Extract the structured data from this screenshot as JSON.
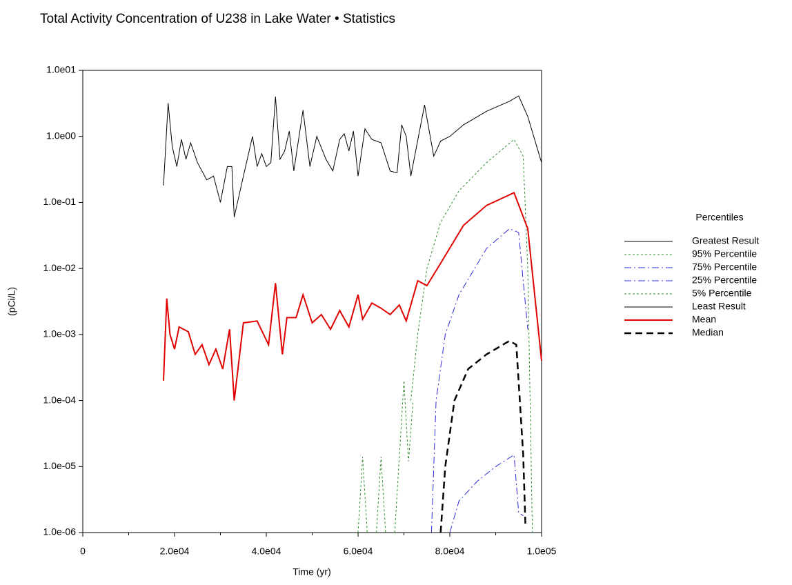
{
  "chart_data": {
    "type": "line",
    "title": "Total Activity Concentration of U238 in Lake Water • Statistics",
    "xlabel": "Time (yr)",
    "ylabel": "(pCi/L)",
    "legend_title": "Percentiles",
    "legend_position": "right",
    "yscale": "log",
    "xlim": [
      0,
      100000
    ],
    "ylim": [
      1e-06,
      10
    ],
    "xticks": [
      0,
      {
        "value": 20000,
        "label": "2.0e04"
      },
      {
        "value": 40000,
        "label": "4.0e04"
      },
      {
        "value": 60000,
        "label": "6.0e04"
      },
      {
        "value": 80000,
        "label": "8.0e04"
      },
      {
        "value": 100000,
        "label": "1.0e05"
      }
    ],
    "yticks": [
      {
        "value": 1e-06,
        "label": "1.0e-06"
      },
      {
        "value": 1e-05,
        "label": "1.0e-05"
      },
      {
        "value": 0.0001,
        "label": "1.0e-04"
      },
      {
        "value": 0.001,
        "label": "1.0e-03"
      },
      {
        "value": 0.01,
        "label": "1.0e-02"
      },
      {
        "value": 0.1,
        "label": "1.0e-01"
      },
      {
        "value": 1,
        "label": "1.0e00"
      },
      {
        "value": 10,
        "label": "1.0e01"
      }
    ],
    "series": [
      {
        "name": "Greatest Result",
        "color": "#000000",
        "dash": "solid",
        "width": 1,
        "x": [
          17600,
          18600,
          19500,
          20500,
          21500,
          22500,
          23500,
          25000,
          27000,
          28500,
          30000,
          31500,
          32500,
          33000,
          35000,
          37000,
          38000,
          39000,
          40000,
          41000,
          42000,
          43000,
          44000,
          45000,
          46000,
          48000,
          49500,
          51000,
          53000,
          54500,
          56000,
          57000,
          58000,
          59000,
          60000,
          61500,
          63000,
          65000,
          67000,
          68500,
          69500,
          70500,
          71500,
          74500,
          76500,
          78000,
          80000,
          83000,
          88000,
          93000,
          95000,
          97000,
          100000
        ],
        "values": [
          0.18,
          3.2,
          0.7,
          0.35,
          0.9,
          0.45,
          0.8,
          0.4,
          0.22,
          0.25,
          0.1,
          0.35,
          0.35,
          0.06,
          0.25,
          1.0,
          0.35,
          0.55,
          0.35,
          0.4,
          4.0,
          0.45,
          0.6,
          1.2,
          0.3,
          2.5,
          0.35,
          1.0,
          0.45,
          0.3,
          0.9,
          1.1,
          0.6,
          1.2,
          0.25,
          1.3,
          0.9,
          0.8,
          0.3,
          0.28,
          1.5,
          1.0,
          0.25,
          3.0,
          0.5,
          0.85,
          1.0,
          1.5,
          2.4,
          3.4,
          4.1,
          2.0,
          0.4
        ]
      },
      {
        "name": "95% Percentile",
        "color": "#2e8b2e",
        "dash": "dotted",
        "width": 1,
        "x": [
          71500,
          73000,
          75000,
          78000,
          82000,
          88000,
          94000,
          96000,
          97000,
          98000
        ],
        "values": [
          0.0001,
          0.001,
          0.01,
          0.05,
          0.15,
          0.4,
          0.9,
          0.5,
          0.01,
          1e-06
        ]
      },
      {
        "name": "75% Percentile",
        "color": "#2828d8",
        "dash": "dashdot",
        "width": 1,
        "x": [
          76000,
          77000,
          79000,
          82000,
          88000,
          93000,
          95000,
          97000
        ],
        "values": [
          1e-06,
          0.0001,
          0.001,
          0.004,
          0.02,
          0.04,
          0.035,
          0.0012
        ]
      },
      {
        "name": "25% Percentile",
        "color": "#2828d8",
        "dash": "dashdot",
        "width": 1,
        "x": [
          80000,
          82000,
          86000,
          90000,
          94000,
          95000,
          96000
        ],
        "values": [
          1e-06,
          3e-06,
          6e-06,
          1e-05,
          1.5e-05,
          2e-06,
          1.8e-06
        ]
      },
      {
        "name": "5% Percentile",
        "color": "#2e8b2e",
        "dash": "dotted",
        "width": 1,
        "x": [
          60000,
          61000,
          62000,
          63000,
          64000,
          65000,
          66000,
          67000,
          68000,
          70000,
          71000,
          72000
        ],
        "values": [
          1e-06,
          1.4e-05,
          1e-06,
          null,
          1e-06,
          1.4e-05,
          1e-06,
          null,
          1e-06,
          0.0002,
          1.2e-05,
          0.0001
        ]
      },
      {
        "name": "Least Result",
        "color": "#000000",
        "dash": "solid",
        "width": 1,
        "x": [],
        "values": []
      },
      {
        "name": "Mean",
        "color": "#e00000",
        "dash": "solid",
        "width": 2,
        "x": [
          17600,
          18300,
          19000,
          20000,
          21000,
          23000,
          24500,
          26000,
          27500,
          29000,
          30500,
          32000,
          33000,
          35000,
          38000,
          40500,
          42000,
          43500,
          44500,
          46500,
          48000,
          50000,
          52000,
          54000,
          56000,
          58000,
          60000,
          61000,
          63000,
          65000,
          67000,
          69000,
          70500,
          73000,
          75000,
          78000,
          83000,
          88000,
          94000,
          97000,
          100000
        ],
        "values": [
          0.0002,
          0.0035,
          0.001,
          0.0006,
          0.0013,
          0.0011,
          0.0005,
          0.0007,
          0.00035,
          0.0006,
          0.0003,
          0.0012,
          0.0001,
          0.0015,
          0.0016,
          0.0007,
          0.006,
          0.0005,
          0.0018,
          0.0018,
          0.004,
          0.0015,
          0.002,
          0.0012,
          0.0023,
          0.0013,
          0.004,
          0.0017,
          0.003,
          0.0025,
          0.002,
          0.0028,
          0.0016,
          0.0065,
          0.0055,
          0.012,
          0.045,
          0.09,
          0.14,
          0.04,
          0.0004
        ]
      },
      {
        "name": "Median",
        "color": "#000000",
        "dash": "dashed",
        "width": 2.5,
        "x": [
          78000,
          79000,
          81000,
          84000,
          88000,
          93000,
          94500,
          96000,
          96500
        ],
        "values": [
          1e-06,
          1e-05,
          0.0001,
          0.0003,
          0.0005,
          0.0008,
          0.0007,
          1.5e-05,
          1.2e-06
        ]
      }
    ]
  }
}
